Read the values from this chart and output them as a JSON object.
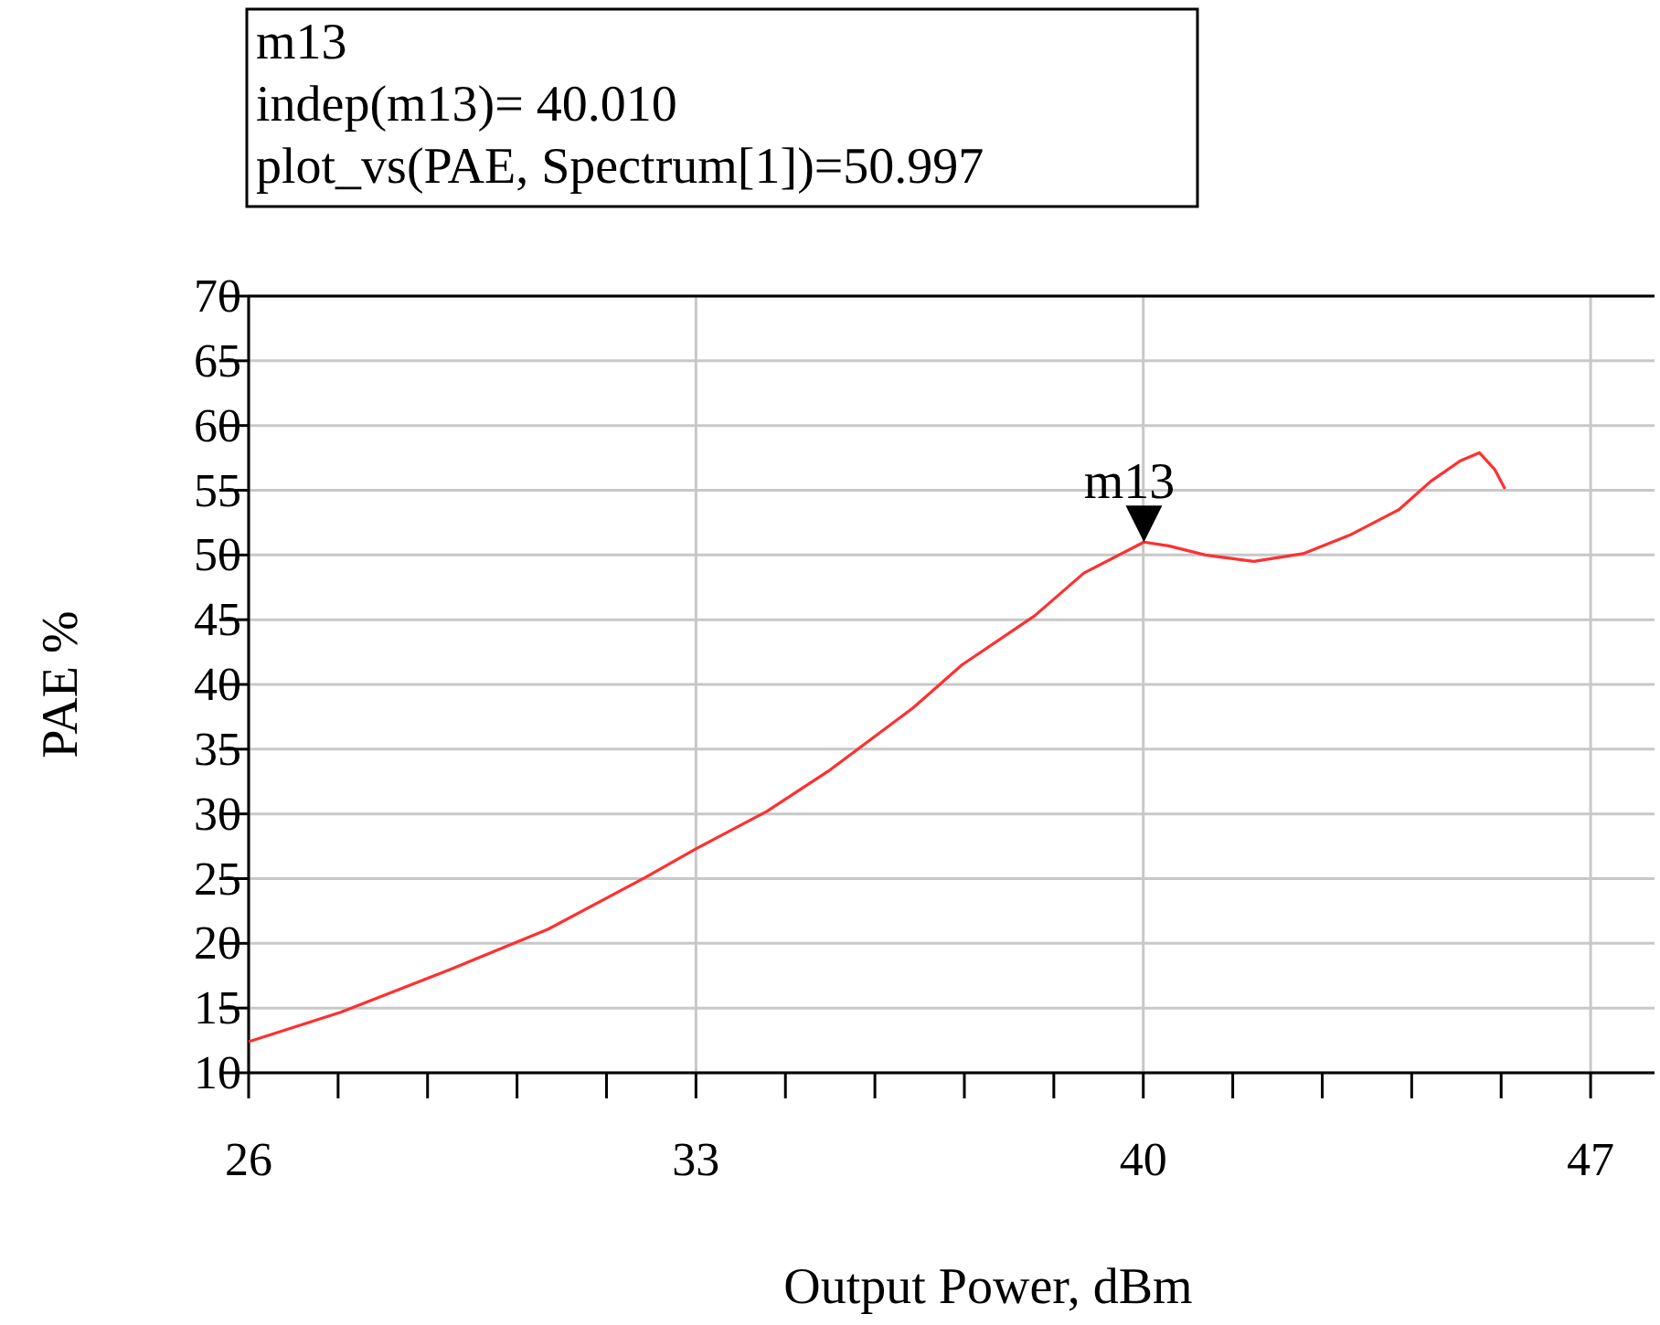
{
  "chart_data": {
    "type": "line",
    "xlabel": "Output Power, dBm",
    "ylabel": "PAE %",
    "x": [
      26,
      27.45,
      29.16,
      30.69,
      32.21,
      33,
      34.11,
      35.07,
      36.4,
      37.16,
      38.3,
      39.07,
      40.01,
      40.4,
      40.97,
      41.73,
      42.5,
      43.26,
      44.0,
      44.5,
      44.97,
      45.26,
      45.5,
      45.66
    ],
    "series": [
      {
        "color": "#ff3030",
        "values": [
          12.4,
          14.7,
          18.0,
          21.1,
          25.1,
          27.3,
          30.2,
          33.3,
          38.2,
          41.5,
          45.3,
          48.6,
          50.997,
          50.7,
          50.0,
          49.5,
          50.1,
          51.6,
          53.5,
          55.7,
          57.3,
          57.9,
          56.6,
          55.1
        ]
      }
    ],
    "xlim": [
      26,
      48
    ],
    "xticks": [
      26,
      {
        "value": 27.4,
        "label": null
      },
      {
        "value": 28.8,
        "label": null
      },
      {
        "value": 30.2,
        "label": null
      },
      {
        "value": 31.6,
        "label": null
      },
      33,
      {
        "value": 34.4,
        "label": null
      },
      {
        "value": 35.8,
        "label": null
      },
      {
        "value": 37.2,
        "label": null
      },
      {
        "value": 38.6,
        "label": null
      },
      40,
      {
        "value": 41.4,
        "label": null
      },
      {
        "value": 42.8,
        "label": null
      },
      {
        "value": 44.2,
        "label": null
      },
      {
        "value": 45.6,
        "label": null
      },
      47
    ],
    "ylim": [
      10,
      70
    ],
    "yticks": [
      10,
      15,
      20,
      25,
      30,
      35,
      40,
      45,
      50,
      55,
      60,
      65,
      70
    ],
    "grid": true,
    "marker": "none",
    "line_style": "solid",
    "annotations": [
      "m13",
      "indep(m13)= 40.010",
      "plot_vs(PAE, Spectrum[1])=50.997",
      {
        "text": "m13",
        "x": 40.01,
        "y": 50.997
      }
    ]
  }
}
